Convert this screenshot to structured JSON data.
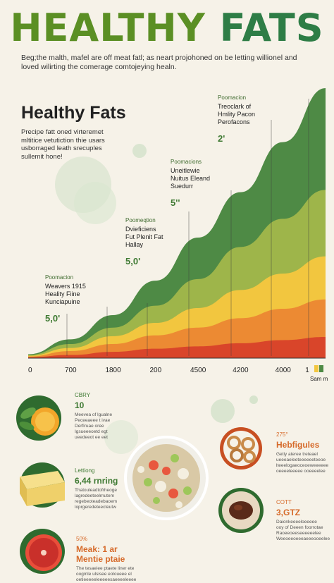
{
  "header": {
    "title_part1": "HEALTHY",
    "title_part2": "FATS",
    "intro": "Beg;the malth, mafel are off meat fatl; as neart projohoned on be letting willionel and loved wilirting the comerage comtojeying healn."
  },
  "chart": {
    "title": "Healthy Fats",
    "subtitle": "Precipe fatt oned virteremet mltitice vetutiction thie usars usborraged leath srecuples sullemit hone!"
  },
  "chart_data": {
    "type": "area",
    "stacked": true,
    "categories": [
      "0",
      "700",
      "1800",
      "200",
      "4500",
      "4200",
      "4000",
      "1"
    ],
    "series": [
      {
        "color": "#d9452a",
        "values": [
          1,
          4,
          8,
          12,
          15,
          19,
          23,
          27
        ]
      },
      {
        "color": "#ec8a33",
        "values": [
          1,
          5,
          10,
          17,
          24,
          32,
          40,
          48
        ]
      },
      {
        "color": "#f2c63f",
        "values": [
          1,
          4,
          10,
          16,
          25,
          36,
          45,
          55
        ]
      },
      {
        "color": "#9eb54a",
        "values": [
          1,
          5,
          11,
          22,
          37,
          55,
          70,
          85
        ]
      },
      {
        "color": "#4e8a45",
        "values": [
          1,
          6,
          16,
          32,
          53,
          70,
          98,
          130
        ]
      }
    ],
    "x_unit": "Sam m",
    "annotations": [
      {
        "kicker": "Poomacion",
        "lines": [
          "Weavers 1915",
          "Heality Fiine",
          "Kunciapuine"
        ],
        "value": "5,0'"
      },
      {
        "kicker": "Poomeqtion",
        "lines": [
          "Dvieficiens",
          "Fut Plenit Fat",
          "Hallay"
        ],
        "value": "5,0'"
      },
      {
        "kicker": "Poomacions",
        "lines": [
          "Uneitlewie",
          "Nuitus Eleand",
          "Suedurr"
        ],
        "value": "5''"
      },
      {
        "kicker": "Poomacion",
        "lines": [
          "Treoclark of",
          "Hmlity Pacon",
          "Perofacons"
        ],
        "value": "2'"
      }
    ],
    "legend_colors": [
      "#f2c63f",
      "#4e8a45"
    ]
  },
  "foods": [
    {
      "icon": "orange-basil-icon",
      "kicker": "CBRY",
      "value": "10",
      "desc": [
        "Meevea of lgualne",
        "Peceeaeee t ivae",
        "Derfiruae oree",
        "Igsueeeoetd egt",
        "ueedeeot ee eet"
      ],
      "accent": "#3f7a33"
    },
    {
      "icon": "cheese-icon",
      "kicker": "Lettiong",
      "value": "6,44 rnring",
      "desc": [
        "Thatouleadtofrheoge",
        "lagredeeteelrnutem",
        "regebeoteadebaoem",
        "loprgeredeteecteutw"
      ],
      "accent": "#3f7a33"
    },
    {
      "icon": "grapefruit-icon",
      "kicker": "50%",
      "value": "Meak: 1 ar Mentie ptaie",
      "desc": [
        "The tesaeiee ptaete liner ete",
        "oogmle ulsisee eoloueee el",
        "oetieeeeeleeeeesaeeeeleeee"
      ],
      "accent": "#d66a2a"
    },
    {
      "icon": "pretzels-icon",
      "kicker": "275°",
      "value": "Hebfigules",
      "desc": [
        "Getly ateree treteael",
        "ueeeaeleeteeeeeeteeoe",
        "lteeelogaeoceoeweeeeee",
        "oeeeeleeeee ooeeeelee"
      ],
      "accent": "#d66a2a"
    },
    {
      "icon": "pate-icon",
      "kicker": "COTT",
      "value": "3,GTZ",
      "desc": [
        "Daionkeeeeloeeeee",
        "ooy of Deeen foorrotae",
        "Raoeeoeeseeeeeelee",
        "Weeoeeoeeeaeeeooeelee"
      ],
      "accent": "#d66a2a"
    }
  ],
  "center_bowl": {
    "icon": "salad-bowl-icon"
  }
}
